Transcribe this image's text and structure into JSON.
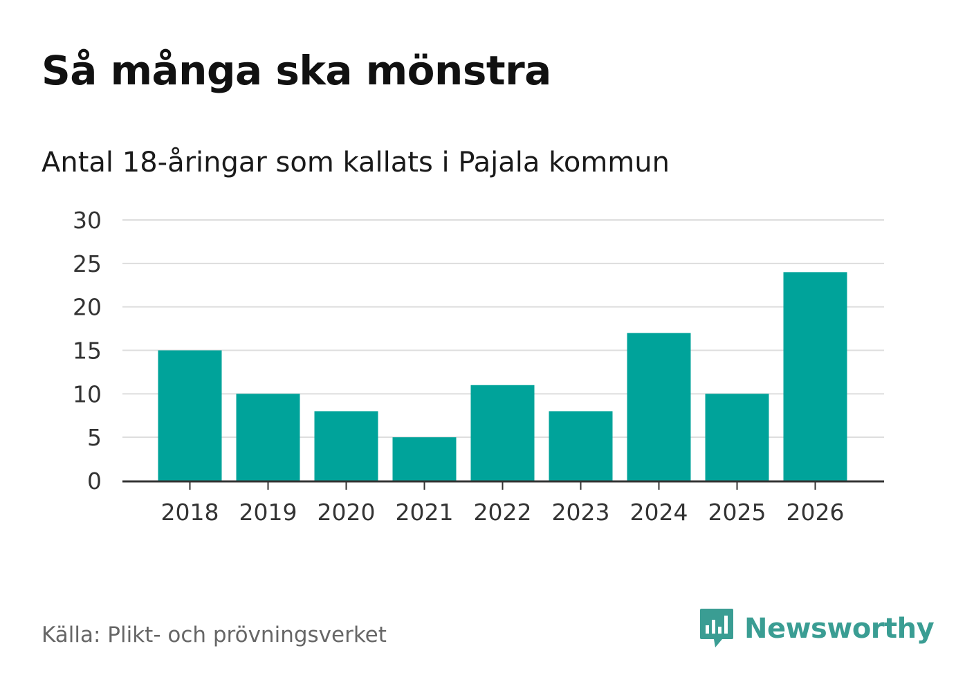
{
  "header": {
    "title": "Så många ska mönstra",
    "subtitle": "Antal 18-åringar som kallats i Pajala kommun"
  },
  "footer": {
    "source": "Källa: Plikt- och prövningsverket",
    "brand": "Newsworthy"
  },
  "colors": {
    "bar": "#00a39a",
    "grid": "#dddddd",
    "axis": "#333333",
    "brand": "#3a9d93"
  },
  "chart_data": {
    "type": "bar",
    "title": "Så många ska mönstra",
    "subtitle": "Antal 18-åringar som kallats i Pajala kommun",
    "xlabel": "",
    "ylabel": "",
    "categories": [
      "2018",
      "2019",
      "2020",
      "2021",
      "2022",
      "2023",
      "2024",
      "2025",
      "2026"
    ],
    "values": [
      15,
      10,
      8,
      5,
      11,
      8,
      17,
      10,
      24
    ],
    "ylim": [
      0,
      30
    ],
    "yticks": [
      0,
      5,
      10,
      15,
      20,
      25,
      30
    ],
    "grid": true,
    "legend": "none"
  }
}
